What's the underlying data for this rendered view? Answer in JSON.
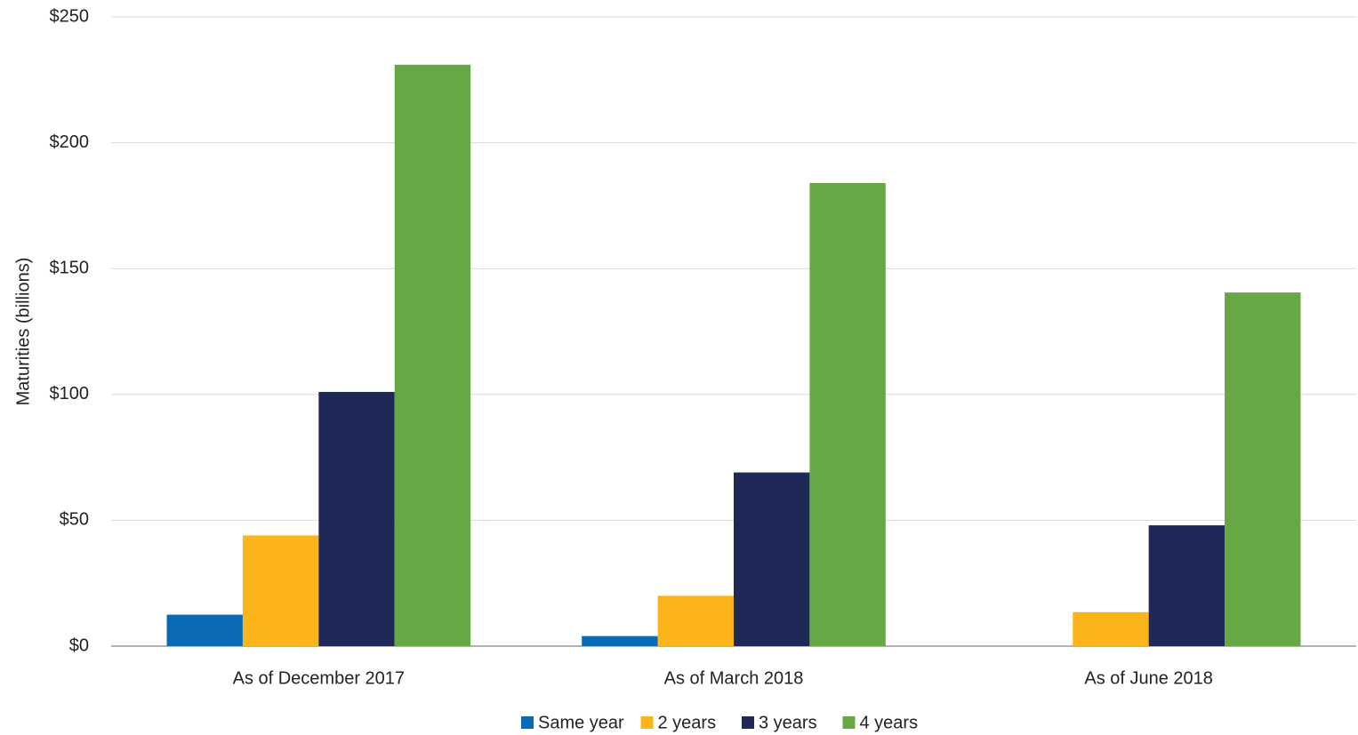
{
  "chart_data": {
    "type": "bar",
    "ylabel": "Maturities (billions)",
    "categories": [
      "As of December 2017",
      "As of March 2018",
      "As of June 2018"
    ],
    "series": [
      {
        "name": "Same year",
        "color": "#0a6ab6",
        "values": [
          12.5,
          4,
          0
        ]
      },
      {
        "name": "2 years",
        "color": "#fbb41a",
        "values": [
          44,
          20,
          13.5
        ]
      },
      {
        "name": "3 years",
        "color": "#1f2957",
        "values": [
          101,
          69,
          48
        ]
      },
      {
        "name": "4 years",
        "color": "#65a844",
        "values": [
          231,
          184,
          140.5
        ]
      }
    ],
    "ylim": [
      0,
      250
    ],
    "yticks": [
      {
        "value": 0,
        "label": "$0"
      },
      {
        "value": 50,
        "label": "$50"
      },
      {
        "value": 100,
        "label": "$100"
      },
      {
        "value": 150,
        "label": "$150"
      },
      {
        "value": 200,
        "label": "$200"
      },
      {
        "value": 250,
        "label": "$250"
      }
    ],
    "grid": true,
    "legend": "bottom"
  }
}
